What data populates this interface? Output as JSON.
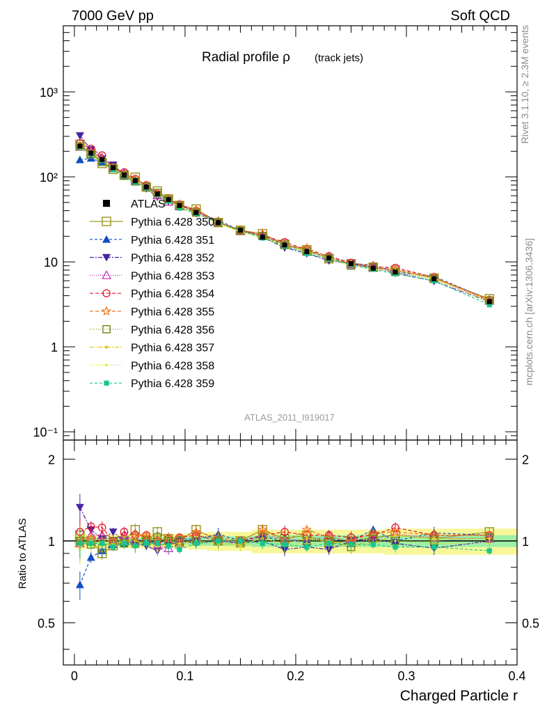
{
  "header": {
    "left": "7000 GeV pp",
    "right": "Soft QCD"
  },
  "side_labels": {
    "upper": "Rivet 3.1.10, ≥ 2.3M events",
    "lower": "mcplots.cern.ch [arXiv:1306.3436]"
  },
  "watermark": "ATLAS_2011_I919017",
  "chart_data": {
    "type": "line",
    "title": "Radial profile ρ",
    "title_suffix": "(track jets)",
    "xlabel": "Charged Particle r",
    "ylabel_ratio": "Ratio to ATLAS",
    "xlim": [
      -0.01,
      0.4
    ],
    "ylim": [
      0.08,
      6000
    ],
    "yscale": "log",
    "ratio_ylim": [
      0.35,
      2.35
    ],
    "x_ticks": [
      "0",
      "0.1",
      "0.2",
      "0.3",
      "0.4"
    ],
    "y_ticks": [
      "10⁻¹",
      "1",
      "10",
      "10²",
      "10³"
    ],
    "ratio_ticks": [
      "0.5",
      "1",
      "2"
    ],
    "legend_position": "left",
    "x": [
      0.005,
      0.015,
      0.025,
      0.035,
      0.045,
      0.055,
      0.065,
      0.075,
      0.085,
      0.095,
      0.11,
      0.13,
      0.15,
      0.17,
      0.19,
      0.21,
      0.23,
      0.25,
      0.27,
      0.29,
      0.325,
      0.375
    ],
    "data": {
      "name": "ATLAS",
      "color": "#000000",
      "marker": "square",
      "values": [
        230,
        190,
        160,
        128,
        105,
        90,
        76,
        63,
        54,
        46,
        38,
        29,
        23.5,
        19.5,
        15.8,
        13.2,
        11.1,
        9.5,
        8.4,
        7.6,
        6.3,
        3.4
      ]
    },
    "ratio_band_inner": [
      0.97,
      0.97,
      0.97,
      0.97,
      0.97,
      0.97,
      0.97,
      0.97,
      0.97,
      0.97,
      0.96,
      0.96,
      0.96,
      0.95,
      0.95,
      0.95,
      0.95,
      0.95,
      0.95,
      0.95,
      0.95,
      0.95
    ],
    "ratio_band_outer": [
      0.94,
      0.94,
      0.94,
      0.94,
      0.94,
      0.94,
      0.94,
      0.94,
      0.94,
      0.94,
      0.93,
      0.92,
      0.92,
      0.9,
      0.9,
      0.9,
      0.9,
      0.9,
      0.9,
      0.89,
      0.89,
      0.89
    ],
    "series": [
      {
        "name": "Pythia 6.428 350",
        "color": "#9e9a23",
        "marker": "open-square",
        "dash": "",
        "ratio": [
          1.05,
          1.0,
          0.9,
          0.96,
          1.0,
          1.1,
          1.0,
          1.08,
          1.02,
          1.0,
          1.1,
          1.0,
          1.0,
          1.1,
          1.02,
          1.05,
          0.98,
          1.0,
          1.03,
          1.05,
          1.02,
          1.08
        ]
      },
      {
        "name": "Pythia 6.428 351",
        "color": "#0e4ec2",
        "marker": "tri-up",
        "dash": "4,3",
        "ratio": [
          0.69,
          0.87,
          0.92,
          0.97,
          0.98,
          0.99,
          0.99,
          0.99,
          1.0,
          1.02,
          1.01,
          1.06,
          1.0,
          1.04,
          1.0,
          1.01,
          1.02,
          1.0,
          1.1,
          1.0,
          1.07,
          1.05
        ]
      },
      {
        "name": "Pythia 6.428 352",
        "color": "#4a23a3",
        "marker": "tri-down",
        "dash": "6,2,2,2",
        "ratio": [
          1.33,
          1.1,
          1.02,
          1.08,
          1.0,
          0.98,
          0.96,
          0.92,
          0.96,
          1.0,
          0.98,
          1.0,
          0.98,
          1.0,
          0.93,
          0.95,
          0.93,
          1.0,
          1.02,
          0.98,
          0.94,
          1.0
        ]
      },
      {
        "name": "Pythia 6.428 353",
        "color": "#bf2ab0",
        "marker": "open-tri",
        "dash": "1,2",
        "ratio": [
          0.98,
          1.05,
          1.05,
          1.0,
          1.05,
          1.0,
          1.02,
          0.96,
          0.94,
          0.98,
          1.05,
          1.02,
          0.98,
          1.05,
          1.02,
          1.0,
          1.05,
          0.98,
          1.02,
          1.06,
          1.03,
          1.02
        ]
      },
      {
        "name": "Pythia 6.428 354",
        "color": "#e3132d",
        "marker": "open-circle",
        "dash": "5,3",
        "ratio": [
          1.08,
          1.13,
          1.12,
          1.0,
          1.08,
          1.05,
          1.05,
          1.0,
          1.02,
          1.03,
          1.05,
          1.0,
          1.0,
          1.05,
          1.08,
          1.05,
          1.05,
          1.03,
          1.05,
          1.12,
          1.05,
          1.05
        ]
      },
      {
        "name": "Pythia 6.428 355",
        "color": "#f2741f",
        "marker": "open-star",
        "dash": "5,3",
        "ratio": [
          1.02,
          1.02,
          1.0,
          1.0,
          1.0,
          1.04,
          1.05,
          1.0,
          1.02,
          1.03,
          1.08,
          1.03,
          1.0,
          1.1,
          1.0,
          1.1,
          1.03,
          1.0,
          1.07,
          1.08,
          1.05,
          1.05
        ]
      },
      {
        "name": "Pythia 6.428 356",
        "color": "#75891e",
        "marker": "open-square-sm",
        "dash": "1,2",
        "ratio": [
          1.0,
          0.97,
          0.94,
          1.0,
          0.98,
          0.98,
          1.0,
          1.03,
          1.0,
          1.0,
          1.0,
          1.0,
          0.98,
          1.03,
          1.0,
          1.0,
          1.0,
          0.95,
          1.02,
          1.0,
          1.0,
          1.03
        ]
      },
      {
        "name": "Pythia 6.428 357",
        "color": "#e6c619",
        "marker": "dot",
        "dash": "6,2,2,2",
        "ratio": [
          0.95,
          1.0,
          0.98,
          0.97,
          1.0,
          1.0,
          0.98,
          0.96,
          0.97,
          0.98,
          1.0,
          0.98,
          0.97,
          1.02,
          0.98,
          1.02,
          1.0,
          0.96,
          0.98,
          1.05,
          1.02,
          1.02
        ]
      },
      {
        "name": "Pythia 6.428 358",
        "color": "#d3e22b",
        "marker": "dot-sm",
        "dash": "1,2",
        "ratio": [
          0.93,
          0.95,
          0.96,
          0.97,
          0.98,
          0.95,
          1.0,
          0.92,
          0.97,
          0.95,
          0.98,
          0.97,
          0.95,
          0.98,
          0.96,
          0.98,
          0.97,
          0.96,
          0.98,
          1.0,
          0.98,
          0.98
        ]
      },
      {
        "name": "Pythia 6.428 359",
        "color": "#16c68c",
        "marker": "square-sm",
        "dash": "4,3",
        "ratio": [
          0.98,
          0.98,
          0.98,
          0.95,
          0.98,
          0.96,
          0.98,
          0.98,
          0.96,
          0.93,
          0.98,
          1.0,
          1.0,
          0.98,
          0.97,
          0.95,
          0.98,
          0.97,
          0.97,
          0.95,
          0.95,
          0.92
        ]
      }
    ]
  }
}
